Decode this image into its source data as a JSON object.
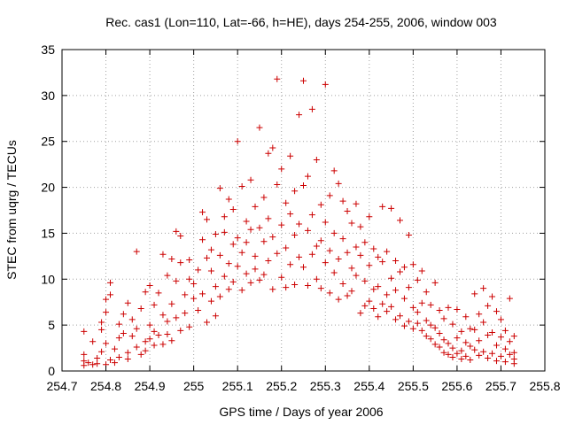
{
  "chart_data": {
    "type": "scatter",
    "title": "Rec. cas1 (Lon=110, Lat=-66, h=HE), days 254-255, 2006, window 003",
    "xlabel": "GPS time / Days of year 2006",
    "ylabel": "STEC from uqrg / TECUs",
    "xlim": [
      254.7,
      255.8
    ],
    "ylim": [
      0,
      35
    ],
    "xticks": [
      "254.7",
      "254.8",
      "254.9",
      "255",
      "255.1",
      "255.2",
      "255.3",
      "255.4",
      "255.5",
      "255.6",
      "255.7",
      "255.8"
    ],
    "yticks": [
      "0",
      "5",
      "10",
      "15",
      "20",
      "25",
      "30",
      "35"
    ],
    "grid": true,
    "marker": "plus",
    "series_color": "#cc0000",
    "series": [
      {
        "points": [
          [
            254.75,
            0.6
          ],
          [
            254.75,
            1.1
          ],
          [
            254.75,
            1.8
          ],
          [
            254.75,
            4.3
          ],
          [
            254.76,
            0.9
          ],
          [
            254.77,
            0.7
          ],
          [
            254.77,
            3.2
          ],
          [
            254.78,
            1.4
          ],
          [
            254.78,
            0.8
          ],
          [
            254.79,
            5.3
          ],
          [
            254.79,
            2.1
          ],
          [
            254.79,
            4.5
          ],
          [
            254.8,
            0.7
          ],
          [
            254.8,
            7.8
          ],
          [
            254.8,
            3.0
          ],
          [
            254.8,
            6.4
          ],
          [
            254.81,
            9.6
          ],
          [
            254.81,
            1.2
          ],
          [
            254.81,
            8.3
          ],
          [
            254.82,
            2.4
          ],
          [
            254.82,
            0.9
          ],
          [
            254.83,
            3.6
          ],
          [
            254.83,
            5.1
          ],
          [
            254.83,
            1.5
          ],
          [
            254.84,
            4.1
          ],
          [
            254.84,
            6.2
          ],
          [
            254.85,
            2.0
          ],
          [
            254.85,
            7.4
          ],
          [
            254.85,
            1.3
          ],
          [
            254.86,
            3.8
          ],
          [
            254.86,
            5.6
          ],
          [
            254.87,
            13.0
          ],
          [
            254.87,
            2.6
          ],
          [
            254.87,
            4.6
          ],
          [
            254.88,
            1.8
          ],
          [
            254.88,
            6.8
          ],
          [
            254.89,
            3.2
          ],
          [
            254.89,
            8.6
          ],
          [
            254.89,
            2.2
          ],
          [
            254.9,
            5.0
          ],
          [
            254.9,
            9.3
          ],
          [
            254.9,
            3.5
          ],
          [
            254.91,
            2.8
          ],
          [
            254.91,
            7.2
          ],
          [
            254.91,
            4.3
          ],
          [
            254.92,
            8.5
          ],
          [
            254.92,
            3.9
          ],
          [
            254.93,
            12.7
          ],
          [
            254.93,
            6.1
          ],
          [
            254.93,
            2.9
          ],
          [
            254.94,
            10.4
          ],
          [
            254.94,
            5.4
          ],
          [
            254.94,
            4.0
          ],
          [
            254.95,
            12.2
          ],
          [
            254.95,
            7.3
          ],
          [
            254.95,
            3.3
          ],
          [
            254.96,
            15.2
          ],
          [
            254.96,
            9.8
          ],
          [
            254.96,
            5.8
          ],
          [
            254.97,
            11.8
          ],
          [
            254.97,
            14.7
          ],
          [
            254.97,
            4.4
          ],
          [
            254.98,
            8.3
          ],
          [
            254.98,
            6.3
          ],
          [
            254.99,
            12.1
          ],
          [
            254.99,
            10.0
          ],
          [
            254.99,
            4.8
          ],
          [
            255.0,
            7.9
          ],
          [
            255.0,
            9.5
          ],
          [
            255.01,
            11.0
          ],
          [
            255.01,
            6.6
          ],
          [
            255.02,
            17.3
          ],
          [
            255.02,
            14.3
          ],
          [
            255.02,
            8.4
          ],
          [
            255.03,
            12.3
          ],
          [
            255.03,
            5.3
          ],
          [
            255.03,
            16.5
          ],
          [
            255.04,
            10.9
          ],
          [
            255.04,
            7.6
          ],
          [
            255.04,
            13.2
          ],
          [
            255.05,
            9.2
          ],
          [
            255.05,
            6.0
          ],
          [
            255.05,
            14.9
          ],
          [
            255.06,
            19.9
          ],
          [
            255.06,
            12.6
          ],
          [
            255.06,
            8.1
          ],
          [
            255.07,
            16.8
          ],
          [
            255.07,
            10.3
          ],
          [
            255.07,
            15.1
          ],
          [
            255.08,
            18.7
          ],
          [
            255.08,
            11.7
          ],
          [
            255.08,
            8.9
          ],
          [
            255.09,
            13.8
          ],
          [
            255.09,
            17.6
          ],
          [
            255.09,
            9.7
          ],
          [
            255.1,
            25.0
          ],
          [
            255.1,
            14.5
          ],
          [
            255.1,
            11.4
          ],
          [
            255.11,
            20.1
          ],
          [
            255.11,
            12.9
          ],
          [
            255.11,
            8.8
          ],
          [
            255.12,
            16.3
          ],
          [
            255.12,
            10.6
          ],
          [
            255.12,
            14.0
          ],
          [
            255.13,
            20.8
          ],
          [
            255.13,
            15.4
          ],
          [
            255.13,
            9.6
          ],
          [
            255.14,
            17.9
          ],
          [
            255.14,
            12.5
          ],
          [
            255.14,
            11.1
          ],
          [
            255.15,
            26.5
          ],
          [
            255.15,
            15.6
          ],
          [
            255.15,
            9.9
          ],
          [
            255.16,
            18.9
          ],
          [
            255.16,
            14.1
          ],
          [
            255.16,
            10.5
          ],
          [
            255.17,
            23.7
          ],
          [
            255.17,
            16.6
          ],
          [
            255.17,
            12.0
          ],
          [
            255.18,
            24.3
          ],
          [
            255.18,
            14.6
          ],
          [
            255.18,
            8.9
          ],
          [
            255.19,
            31.8
          ],
          [
            255.19,
            20.3
          ],
          [
            255.19,
            12.8
          ],
          [
            255.2,
            22.0
          ],
          [
            255.2,
            15.9
          ],
          [
            255.2,
            10.2
          ],
          [
            255.21,
            18.3
          ],
          [
            255.21,
            13.4
          ],
          [
            255.21,
            9.1
          ],
          [
            255.22,
            23.4
          ],
          [
            255.22,
            17.1
          ],
          [
            255.22,
            11.6
          ],
          [
            255.23,
            19.6
          ],
          [
            255.23,
            14.8
          ],
          [
            255.23,
            9.4
          ],
          [
            255.24,
            27.9
          ],
          [
            255.24,
            16.0
          ],
          [
            255.24,
            12.4
          ],
          [
            255.25,
            31.6
          ],
          [
            255.25,
            20.2
          ],
          [
            255.25,
            11.3
          ],
          [
            255.26,
            21.2
          ],
          [
            255.26,
            15.3
          ],
          [
            255.26,
            9.3
          ],
          [
            255.27,
            28.5
          ],
          [
            255.27,
            17.0
          ],
          [
            255.27,
            12.7
          ],
          [
            255.28,
            23.0
          ],
          [
            255.28,
            13.6
          ],
          [
            255.28,
            10.0
          ],
          [
            255.29,
            18.1
          ],
          [
            255.29,
            14.2
          ],
          [
            255.29,
            9.0
          ],
          [
            255.3,
            31.2
          ],
          [
            255.3,
            16.2
          ],
          [
            255.3,
            11.8
          ],
          [
            255.31,
            19.1
          ],
          [
            255.31,
            13.1
          ],
          [
            255.31,
            8.5
          ],
          [
            255.32,
            21.8
          ],
          [
            255.32,
            15.0
          ],
          [
            255.32,
            10.7
          ],
          [
            255.33,
            20.4
          ],
          [
            255.33,
            12.2
          ],
          [
            255.33,
            7.8
          ],
          [
            255.34,
            18.5
          ],
          [
            255.34,
            14.4
          ],
          [
            255.34,
            9.5
          ],
          [
            255.35,
            17.4
          ],
          [
            255.35,
            12.9
          ],
          [
            255.35,
            8.2
          ],
          [
            255.36,
            16.1
          ],
          [
            255.36,
            11.2
          ],
          [
            255.36,
            8.7
          ],
          [
            255.37,
            18.2
          ],
          [
            255.37,
            13.5
          ],
          [
            255.37,
            10.4
          ],
          [
            255.38,
            15.7
          ],
          [
            255.38,
            12.6
          ],
          [
            255.38,
            6.3
          ],
          [
            255.39,
            14.0
          ],
          [
            255.39,
            9.8
          ],
          [
            255.39,
            7.1
          ],
          [
            255.4,
            16.8
          ],
          [
            255.4,
            11.5
          ],
          [
            255.4,
            7.6
          ],
          [
            255.41,
            13.3
          ],
          [
            255.41,
            8.9
          ],
          [
            255.41,
            6.8
          ],
          [
            255.42,
            12.4
          ],
          [
            255.42,
            9.2
          ],
          [
            255.42,
            5.9
          ],
          [
            255.43,
            17.9
          ],
          [
            255.43,
            11.9
          ],
          [
            255.43,
            7.3
          ],
          [
            255.44,
            13.0
          ],
          [
            255.44,
            8.3
          ],
          [
            255.44,
            6.5
          ],
          [
            255.45,
            17.7
          ],
          [
            255.45,
            10.1
          ],
          [
            255.45,
            7.0
          ],
          [
            255.46,
            12.0
          ],
          [
            255.46,
            8.8
          ],
          [
            255.46,
            5.6
          ],
          [
            255.47,
            16.4
          ],
          [
            255.47,
            10.8
          ],
          [
            255.47,
            6.0
          ],
          [
            255.48,
            11.3
          ],
          [
            255.48,
            7.9
          ],
          [
            255.48,
            4.9
          ],
          [
            255.49,
            14.8
          ],
          [
            255.49,
            9.1
          ],
          [
            255.49,
            5.4
          ],
          [
            255.5,
            11.6
          ],
          [
            255.5,
            6.9
          ],
          [
            255.5,
            4.6
          ],
          [
            255.51,
            9.9
          ],
          [
            255.51,
            6.4
          ],
          [
            255.51,
            5.2
          ],
          [
            255.52,
            10.9
          ],
          [
            255.52,
            7.4
          ],
          [
            255.52,
            4.4
          ],
          [
            255.53,
            8.6
          ],
          [
            255.53,
            5.5
          ],
          [
            255.53,
            3.8
          ],
          [
            255.54,
            7.2
          ],
          [
            255.54,
            5.0
          ],
          [
            255.54,
            3.5
          ],
          [
            255.55,
            9.6
          ],
          [
            255.55,
            4.7
          ],
          [
            255.55,
            2.9
          ],
          [
            255.56,
            6.6
          ],
          [
            255.56,
            4.1
          ],
          [
            255.56,
            2.6
          ],
          [
            255.57,
            5.7
          ],
          [
            255.57,
            3.4
          ],
          [
            255.57,
            2.0
          ],
          [
            255.58,
            6.9
          ],
          [
            255.58,
            3.0
          ],
          [
            255.58,
            1.8
          ],
          [
            255.59,
            5.1
          ],
          [
            255.59,
            2.5
          ],
          [
            255.59,
            1.5
          ],
          [
            255.6,
            6.7
          ],
          [
            255.6,
            3.6
          ],
          [
            255.6,
            1.9
          ],
          [
            255.61,
            4.3
          ],
          [
            255.61,
            2.2
          ],
          [
            255.61,
            1.3
          ],
          [
            255.62,
            5.9
          ],
          [
            255.62,
            3.1
          ],
          [
            255.62,
            1.6
          ],
          [
            255.63,
            4.6
          ],
          [
            255.63,
            2.7
          ],
          [
            255.63,
            1.2
          ],
          [
            255.64,
            8.4
          ],
          [
            255.64,
            4.5
          ],
          [
            255.64,
            2.3
          ],
          [
            255.65,
            6.2
          ],
          [
            255.65,
            3.3
          ],
          [
            255.65,
            1.7
          ],
          [
            255.66,
            9.0
          ],
          [
            255.66,
            5.3
          ],
          [
            255.66,
            2.1
          ],
          [
            255.67,
            7.1
          ],
          [
            255.67,
            3.9
          ],
          [
            255.67,
            1.4
          ],
          [
            255.68,
            8.1
          ],
          [
            255.68,
            4.2
          ],
          [
            255.68,
            1.9
          ],
          [
            255.69,
            6.5
          ],
          [
            255.69,
            2.8
          ],
          [
            255.69,
            1.1
          ],
          [
            255.7,
            5.6
          ],
          [
            255.7,
            3.7
          ],
          [
            255.7,
            1.6
          ],
          [
            255.71,
            4.4
          ],
          [
            255.71,
            2.4
          ],
          [
            255.71,
            1.0
          ],
          [
            255.72,
            7.9
          ],
          [
            255.72,
            3.2
          ],
          [
            255.72,
            1.8
          ],
          [
            255.73,
            3.8
          ],
          [
            255.73,
            2.0
          ],
          [
            255.73,
            0.8
          ],
          [
            255.73,
            1.3
          ]
        ]
      }
    ]
  }
}
